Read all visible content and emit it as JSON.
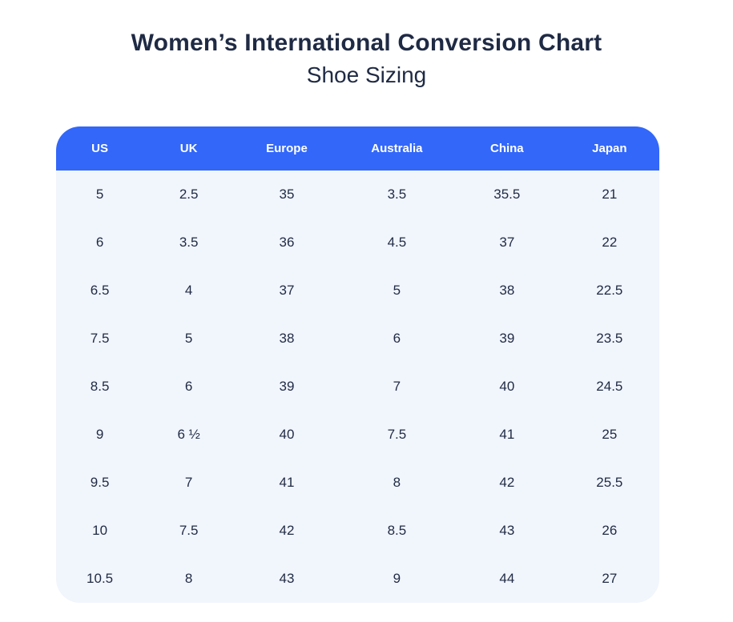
{
  "header": {
    "title": "Women’s International Conversion Chart",
    "subtitle": "Shoe Sizing"
  },
  "colors": {
    "header_blue": "#3267FA",
    "body_bg": "#F1F5FC",
    "text_dark": "#1F2A44",
    "header_text": "#FFFFFF"
  },
  "table": {
    "columns": [
      "US",
      "UK",
      "Europe",
      "Australia",
      "China",
      "Japan"
    ],
    "rows": [
      [
        "5",
        "2.5",
        "35",
        "3.5",
        "35.5",
        "21"
      ],
      [
        "6",
        "3.5",
        "36",
        "4.5",
        "37",
        "22"
      ],
      [
        "6.5",
        "4",
        "37",
        "5",
        "38",
        "22.5"
      ],
      [
        "7.5",
        "5",
        "38",
        "6",
        "39",
        "23.5"
      ],
      [
        "8.5",
        "6",
        "39",
        "7",
        "40",
        "24.5"
      ],
      [
        "9",
        "6 ½",
        "40",
        "7.5",
        "41",
        "25"
      ],
      [
        "9.5",
        "7",
        "41",
        "8",
        "42",
        "25.5"
      ],
      [
        "10",
        "7.5",
        "42",
        "8.5",
        "43",
        "26"
      ],
      [
        "10.5",
        "8",
        "43",
        "9",
        "44",
        "27"
      ]
    ]
  },
  "chart_data": {
    "type": "table",
    "title": "Women’s International Conversion Chart",
    "subtitle": "Shoe Sizing",
    "columns": [
      "US",
      "UK",
      "Europe",
      "Australia",
      "China",
      "Japan"
    ],
    "rows": [
      [
        "5",
        "2.5",
        "35",
        "3.5",
        "35.5",
        "21"
      ],
      [
        "6",
        "3.5",
        "36",
        "4.5",
        "37",
        "22"
      ],
      [
        "6.5",
        "4",
        "37",
        "5",
        "38",
        "22.5"
      ],
      [
        "7.5",
        "5",
        "38",
        "6",
        "39",
        "23.5"
      ],
      [
        "8.5",
        "6",
        "39",
        "7",
        "40",
        "24.5"
      ],
      [
        "9",
        "6 ½",
        "40",
        "7.5",
        "41",
        "25"
      ],
      [
        "9.5",
        "7",
        "41",
        "8",
        "42",
        "25.5"
      ],
      [
        "10",
        "7.5",
        "42",
        "8.5",
        "43",
        "26"
      ],
      [
        "10.5",
        "8",
        "43",
        "9",
        "44",
        "27"
      ]
    ],
    "legend": null,
    "grid": false
  }
}
